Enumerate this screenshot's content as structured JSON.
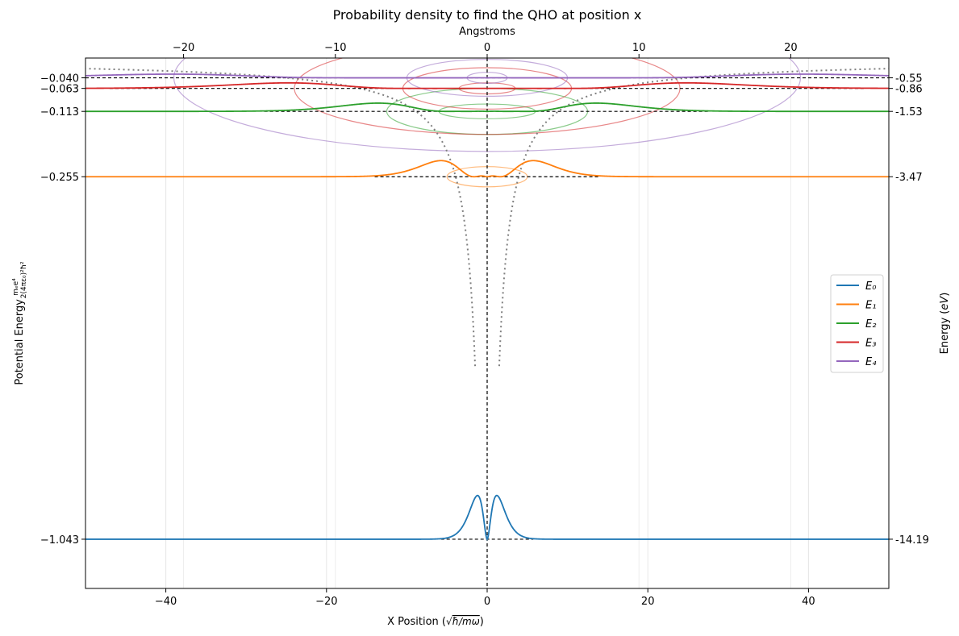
{
  "chart_data": {
    "type": "line",
    "title": "Probability density to find the QHO at position x",
    "xlabel": "X Position (√ħ/mω)",
    "ylabel_left": "Potential Energy  mₑe⁴ / 2(4πε₀)²ħ²",
    "ylabel_right": "Energy (eV)",
    "top_axis_label": "Angstroms",
    "xlim": [
      -50,
      50
    ],
    "ylim": [
      -1.15,
      0.003
    ],
    "top_xlim": [
      -26.46,
      26.46
    ],
    "grid": "vertical",
    "legend_position": "center-right",
    "x_ticks": [
      -40,
      -20,
      0,
      20,
      40
    ],
    "x_tick_labels": [
      "−40",
      "−20",
      "0",
      "20",
      "40"
    ],
    "top_ticks": [
      -20,
      -10,
      0,
      10,
      20
    ],
    "top_tick_labels": [
      "−20",
      "−10",
      "0",
      "10",
      "20"
    ],
    "left_ticks": [
      -0.04,
      -0.063,
      -0.113,
      -0.255,
      -1.043
    ],
    "left_tick_labels": [
      "−0.040",
      "−0.063",
      "−0.113",
      "−0.255",
      "−1.043"
    ],
    "right_ticks": [
      -0.04,
      -0.063,
      -0.113,
      -0.255,
      -1.043
    ],
    "right_tick_labels": [
      "-0.55",
      "-0.86",
      "-1.53",
      "-3.47",
      "-14.19"
    ],
    "potential_curve": {
      "style": "dotted",
      "color": "#808080",
      "form": "-1/|x|"
    },
    "series": [
      {
        "name": "E₀",
        "legend": "E0",
        "color": "#1f77b4",
        "energy": -1.043,
        "energy_ev": -14.19,
        "n": 1,
        "peak_amplitude": 0.095,
        "radial_scale": 1.0
      },
      {
        "name": "E₁",
        "legend": "E1",
        "color": "#ff7f0e",
        "energy": -0.255,
        "energy_ev": -3.47,
        "n": 2,
        "peak_amplitude": 0.035,
        "radial_scale": 4.0
      },
      {
        "name": "E₂",
        "legend": "E2",
        "color": "#2ca02c",
        "energy": -0.113,
        "energy_ev": -1.53,
        "n": 3,
        "peak_amplitude": 0.018,
        "radial_scale": 9.0
      },
      {
        "name": "E₃",
        "legend": "E3",
        "color": "#d62728",
        "energy": -0.063,
        "energy_ev": -0.86,
        "n": 4,
        "peak_amplitude": 0.012,
        "radial_scale": 16.0
      },
      {
        "name": "E₄",
        "legend": "E4",
        "color": "#9467bd",
        "energy": -0.04,
        "energy_ev": -0.55,
        "n": 5,
        "peak_amplitude": 0.008,
        "radial_scale": 25.0
      }
    ],
    "orbit_ellipses": [
      {
        "color": "#ff7f0e",
        "center_y": -0.255,
        "rx": 5.0,
        "ry": 0.022
      },
      {
        "color": "#2ca02c",
        "center_y": -0.113,
        "rx": 12.5,
        "ry": 0.05
      },
      {
        "color": "#2ca02c",
        "center_y": -0.113,
        "rx": 6.0,
        "ry": 0.016
      },
      {
        "color": "#d62728",
        "center_y": -0.063,
        "rx": 24.0,
        "ry": 0.1
      },
      {
        "color": "#d62728",
        "center_y": -0.063,
        "rx": 10.5,
        "ry": 0.045
      },
      {
        "color": "#d62728",
        "center_y": -0.063,
        "rx": 3.5,
        "ry": 0.012
      },
      {
        "color": "#9467bd",
        "center_y": -0.04,
        "rx": 39.0,
        "ry": 0.16
      },
      {
        "color": "#9467bd",
        "center_y": -0.04,
        "rx": 10.0,
        "ry": 0.04
      },
      {
        "color": "#9467bd",
        "center_y": -0.04,
        "rx": 2.5,
        "ry": 0.012
      }
    ]
  }
}
